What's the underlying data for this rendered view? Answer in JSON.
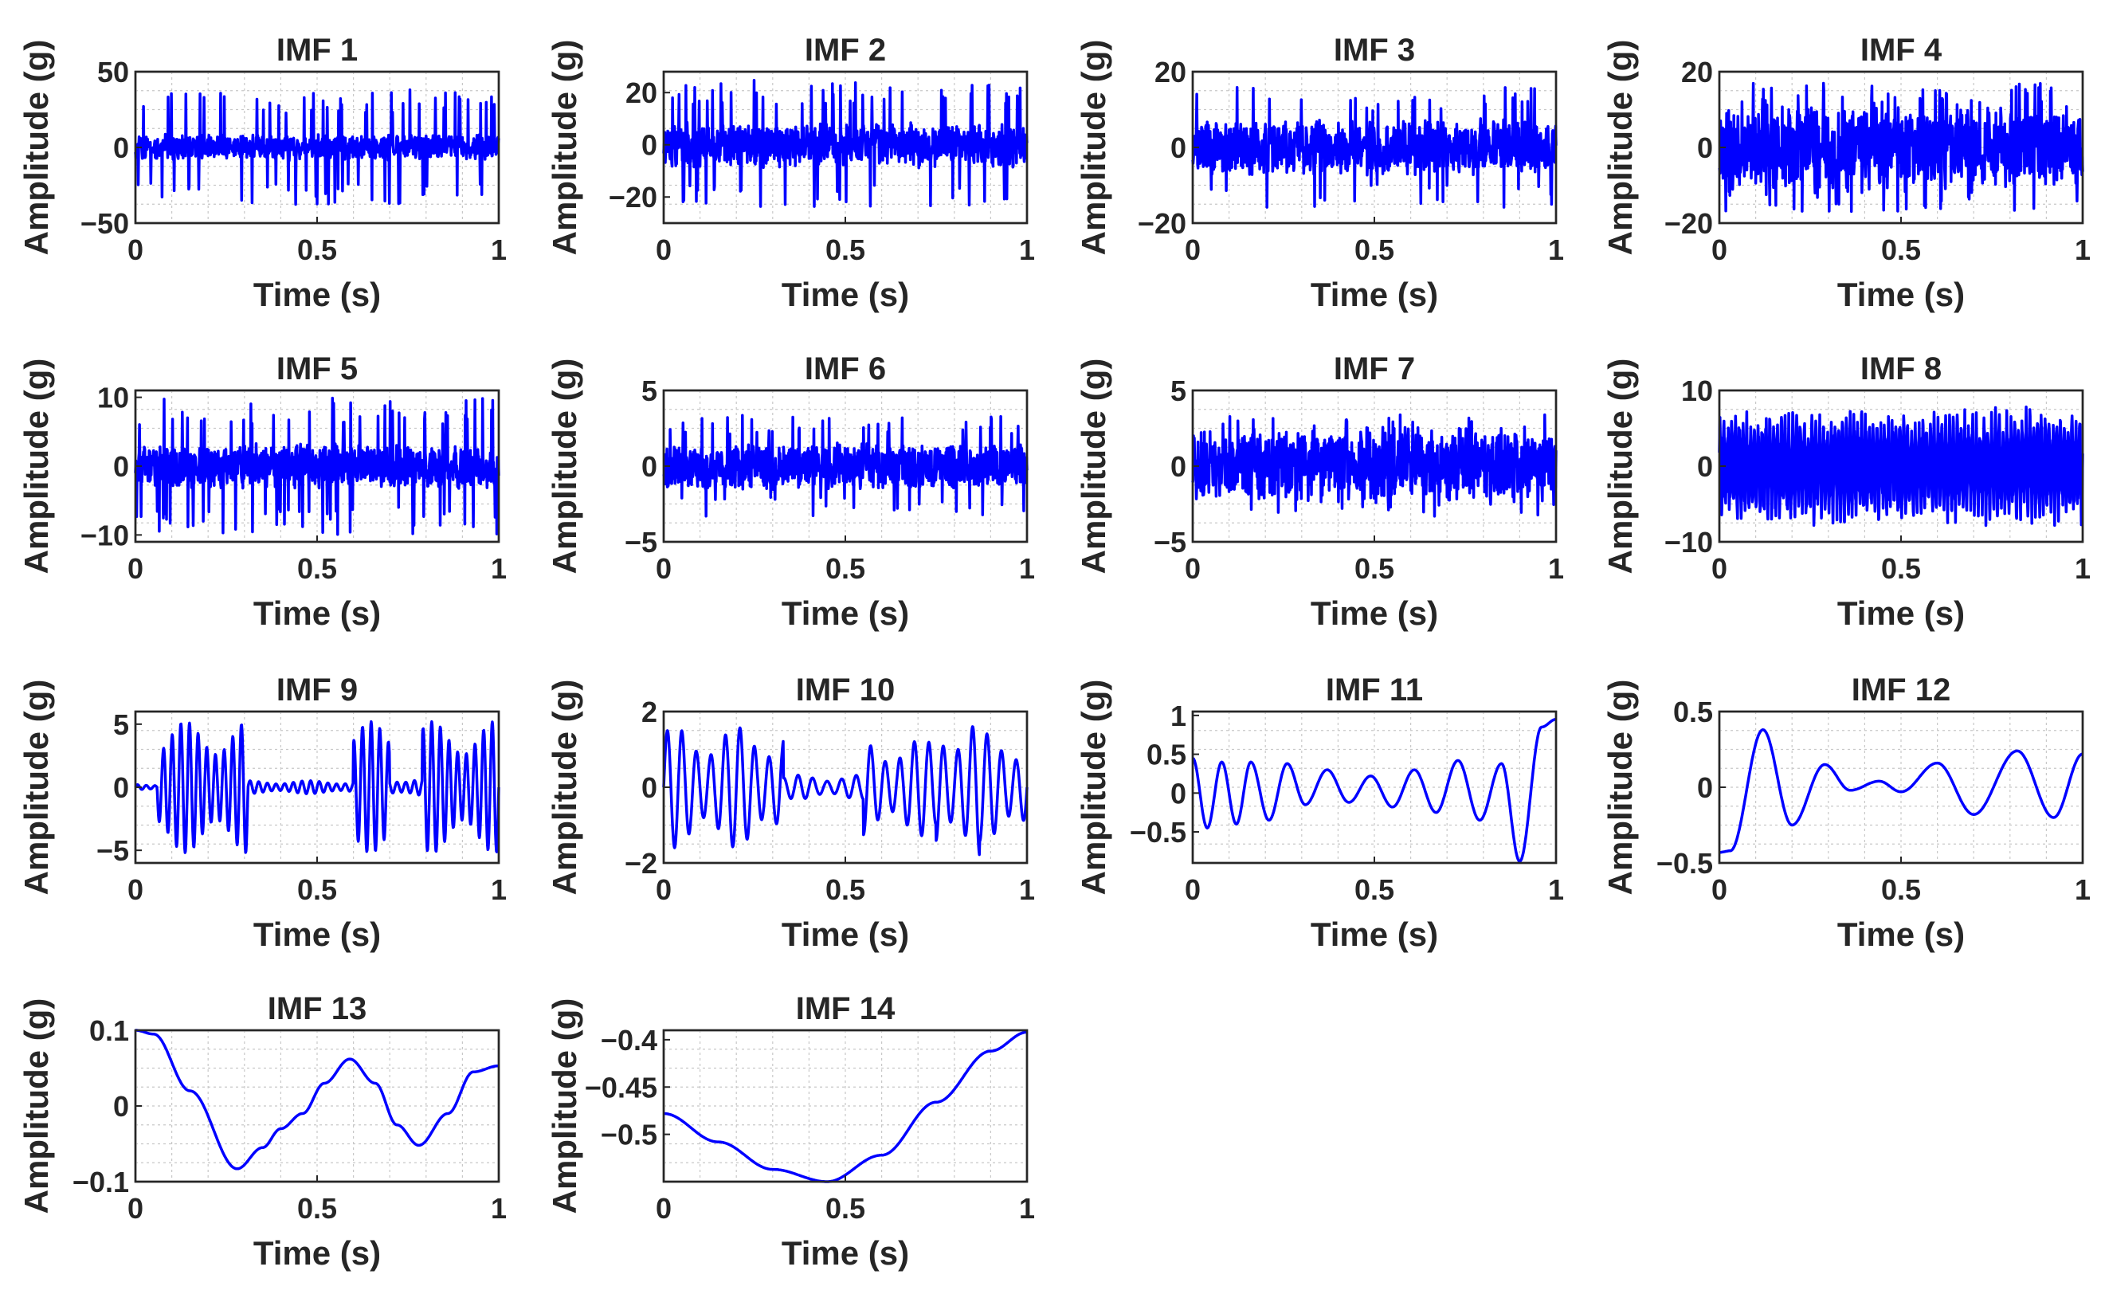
{
  "chart_data": [
    {
      "type": "line",
      "title": "IMF 1",
      "xlabel": "Time (s)",
      "ylabel": "Amplitude (g)",
      "xlim": [
        0,
        1
      ],
      "ylim": [
        -50,
        50
      ],
      "xticks": [
        "0",
        "0.5",
        "1"
      ],
      "yticks": [
        {
          "v": 50,
          "label": "50"
        },
        {
          "v": 0,
          "label": "0"
        },
        {
          "v": -50,
          "label": "−50"
        }
      ],
      "signal": {
        "kind": "noise",
        "amp": 9,
        "spike": 38,
        "spike_rate": 0.08,
        "seed": 11
      },
      "color": "#0000ff"
    },
    {
      "type": "line",
      "title": "IMF 2",
      "xlabel": "Time (s)",
      "ylabel": "Amplitude (g)",
      "xlim": [
        0,
        1
      ],
      "ylim": [
        -30,
        28
      ],
      "xticks": [
        "0",
        "0.5",
        "1"
      ],
      "yticks": [
        {
          "v": 20,
          "label": "20"
        },
        {
          "v": 0,
          "label": "0"
        },
        {
          "v": -20,
          "label": "−20"
        }
      ],
      "signal": {
        "kind": "noise",
        "amp": 9,
        "spike": 25,
        "spike_rate": 0.07,
        "seed": 23
      },
      "color": "#0000ff"
    },
    {
      "type": "line",
      "title": "IMF 3",
      "xlabel": "Time (s)",
      "ylabel": "Amplitude (g)",
      "xlim": [
        0,
        1
      ],
      "ylim": [
        -20,
        20
      ],
      "xticks": [
        "0",
        "0.5",
        "1"
      ],
      "yticks": [
        {
          "v": 20,
          "label": "20"
        },
        {
          "v": 0,
          "label": "0"
        },
        {
          "v": -20,
          "label": "−20"
        }
      ],
      "signal": {
        "kind": "noise",
        "amp": 8,
        "spike": 16,
        "spike_rate": 0.06,
        "seed": 37
      },
      "color": "#0000ff"
    },
    {
      "type": "line",
      "title": "IMF 4",
      "xlabel": "Time (s)",
      "ylabel": "Amplitude (g)",
      "xlim": [
        0,
        1
      ],
      "ylim": [
        -20,
        20
      ],
      "xticks": [
        "0",
        "0.5",
        "1"
      ],
      "yticks": [
        {
          "v": 20,
          "label": "20"
        },
        {
          "v": 0,
          "label": "0"
        },
        {
          "v": -20,
          "label": "−20"
        }
      ],
      "signal": {
        "kind": "noise",
        "amp": 11,
        "spike": 17,
        "spike_rate": 0.08,
        "seed": 41
      },
      "color": "#0000ff"
    },
    {
      "type": "line",
      "title": "IMF 5",
      "xlabel": "Time (s)",
      "ylabel": "Amplitude (g)",
      "xlim": [
        0,
        1
      ],
      "ylim": [
        -11,
        11
      ],
      "xticks": [
        "0",
        "0.5",
        "1"
      ],
      "yticks": [
        {
          "v": 10,
          "label": "10"
        },
        {
          "v": 0,
          "label": "0"
        },
        {
          "v": -10,
          "label": "−10"
        }
      ],
      "signal": {
        "kind": "noise",
        "amp": 3.5,
        "spike": 10,
        "spike_rate": 0.09,
        "seed": 53
      },
      "color": "#0000ff"
    },
    {
      "type": "line",
      "title": "IMF 6",
      "xlabel": "Time (s)",
      "ylabel": "Amplitude (g)",
      "xlim": [
        0,
        1
      ],
      "ylim": [
        -5,
        5
      ],
      "xticks": [
        "0",
        "0.5",
        "1"
      ],
      "yticks": [
        {
          "v": 5,
          "label": "5"
        },
        {
          "v": 0,
          "label": "0"
        },
        {
          "v": -5,
          "label": "−5"
        }
      ],
      "signal": {
        "kind": "noise",
        "amp": 1.6,
        "spike": 3.4,
        "spike_rate": 0.05,
        "seed": 67
      },
      "color": "#0000ff"
    },
    {
      "type": "line",
      "title": "IMF 7",
      "xlabel": "Time (s)",
      "ylabel": "Amplitude (g)",
      "xlim": [
        0,
        1
      ],
      "ylim": [
        -5,
        5
      ],
      "xticks": [
        "0",
        "0.5",
        "1"
      ],
      "yticks": [
        {
          "v": 5,
          "label": "5"
        },
        {
          "v": 0,
          "label": "0"
        },
        {
          "v": -5,
          "label": "−5"
        }
      ],
      "signal": {
        "kind": "noise",
        "amp": 2.6,
        "spike": 3.5,
        "spike_rate": 0.05,
        "seed": 71
      },
      "color": "#0000ff"
    },
    {
      "type": "line",
      "title": "IMF 8",
      "xlabel": "Time (s)",
      "ylabel": "Amplitude (g)",
      "xlim": [
        0,
        1
      ],
      "ylim": [
        -10,
        10
      ],
      "xticks": [
        "0",
        "0.5",
        "1"
      ],
      "yticks": [
        {
          "v": 10,
          "label": "10"
        },
        {
          "v": 0,
          "label": "0"
        },
        {
          "v": -10,
          "label": "−10"
        }
      ],
      "signal": {
        "kind": "burst",
        "cycles": 95,
        "amp": 7.5,
        "seed": 83
      },
      "color": "#0000ff"
    },
    {
      "type": "line",
      "title": "IMF 9",
      "xlabel": "Time (s)",
      "ylabel": "Amplitude (g)",
      "xlim": [
        0,
        1
      ],
      "ylim": [
        -6,
        6
      ],
      "xticks": [
        "0",
        "0.5",
        "1"
      ],
      "yticks": [
        {
          "v": 5,
          "label": "5"
        },
        {
          "v": 0,
          "label": "0"
        },
        {
          "v": -5,
          "label": "−5"
        }
      ],
      "signal": {
        "kind": "packets",
        "cycles": 42,
        "amp": 5.2,
        "windows": [
          [
            0.06,
            0.31,
            1
          ],
          [
            0.31,
            0.6,
            0.1
          ],
          [
            0.6,
            0.7,
            1
          ],
          [
            0.7,
            0.79,
            0.15
          ],
          [
            0.79,
            1,
            1
          ]
        ],
        "seed": 97
      },
      "color": "#0000ff"
    },
    {
      "type": "line",
      "title": "IMF 10",
      "xlabel": "Time (s)",
      "ylabel": "Amplitude (g)",
      "xlim": [
        0,
        1
      ],
      "ylim": [
        -2,
        2
      ],
      "xticks": [
        "0",
        "0.5",
        "1"
      ],
      "yticks": [
        {
          "v": 2,
          "label": "2"
        },
        {
          "v": 0,
          "label": "0"
        },
        {
          "v": -2,
          "label": "−2"
        }
      ],
      "signal": {
        "kind": "packets",
        "cycles": 25,
        "amp": 1.6,
        "windows": [
          [
            0,
            0.33,
            1
          ],
          [
            0.33,
            0.55,
            0.2
          ],
          [
            0.55,
            0.75,
            0.8
          ],
          [
            0.75,
            0.87,
            1.15
          ],
          [
            0.87,
            1,
            0.9
          ]
        ],
        "seed": 101
      },
      "color": "#0000ff"
    },
    {
      "type": "line",
      "title": "IMF 11",
      "xlabel": "Time (s)",
      "ylabel": "Amplitude (g)",
      "xlim": [
        0,
        1
      ],
      "ylim": [
        -0.9,
        1.05
      ],
      "xticks": [
        "0",
        "0.5",
        "1"
      ],
      "yticks": [
        {
          "v": 1,
          "label": "1"
        },
        {
          "v": 0.5,
          "label": "0.5"
        },
        {
          "v": 0,
          "label": "0"
        },
        {
          "v": -0.5,
          "label": "−0.5"
        }
      ],
      "points": [
        [
          0,
          0.45
        ],
        [
          0.04,
          -0.45
        ],
        [
          0.08,
          0.4
        ],
        [
          0.12,
          -0.4
        ],
        [
          0.16,
          0.4
        ],
        [
          0.21,
          -0.35
        ],
        [
          0.26,
          0.38
        ],
        [
          0.31,
          -0.15
        ],
        [
          0.37,
          0.3
        ],
        [
          0.43,
          -0.12
        ],
        [
          0.49,
          0.22
        ],
        [
          0.55,
          -0.18
        ],
        [
          0.61,
          0.3
        ],
        [
          0.67,
          -0.25
        ],
        [
          0.73,
          0.42
        ],
        [
          0.79,
          -0.35
        ],
        [
          0.85,
          0.38
        ],
        [
          0.9,
          -0.88
        ],
        [
          0.96,
          0.85
        ],
        [
          1,
          0.95
        ]
      ],
      "color": "#0000ff"
    },
    {
      "type": "line",
      "title": "IMF 12",
      "xlabel": "Time (s)",
      "ylabel": "Amplitude (g)",
      "xlim": [
        0,
        1
      ],
      "ylim": [
        -0.5,
        0.5
      ],
      "xticks": [
        "0",
        "0.5",
        "1"
      ],
      "yticks": [
        {
          "v": 0.5,
          "label": "0.5"
        },
        {
          "v": 0,
          "label": "0"
        },
        {
          "v": -0.5,
          "label": "−0.5"
        }
      ],
      "points": [
        [
          0,
          -0.43
        ],
        [
          0.03,
          -0.42
        ],
        [
          0.12,
          0.38
        ],
        [
          0.2,
          -0.25
        ],
        [
          0.29,
          0.15
        ],
        [
          0.36,
          -0.02
        ],
        [
          0.44,
          0.04
        ],
        [
          0.5,
          -0.03
        ],
        [
          0.6,
          0.16
        ],
        [
          0.7,
          -0.18
        ],
        [
          0.82,
          0.24
        ],
        [
          0.92,
          -0.2
        ],
        [
          1,
          0.22
        ]
      ],
      "color": "#0000ff"
    },
    {
      "type": "line",
      "title": "IMF 13",
      "xlabel": "Time (s)",
      "ylabel": "Amplitude (g)",
      "xlim": [
        0,
        1
      ],
      "ylim": [
        -0.1,
        0.1
      ],
      "xticks": [
        "0",
        "0.5",
        "1"
      ],
      "yticks": [
        {
          "v": 0.1,
          "label": "0.1"
        },
        {
          "v": 0,
          "label": "0"
        },
        {
          "v": -0.1,
          "label": "−0.1"
        }
      ],
      "points": [
        [
          0,
          0.1
        ],
        [
          0.05,
          0.095
        ],
        [
          0.15,
          0.02
        ],
        [
          0.28,
          -0.083
        ],
        [
          0.35,
          -0.055
        ],
        [
          0.4,
          -0.03
        ],
        [
          0.46,
          -0.01
        ],
        [
          0.52,
          0.03
        ],
        [
          0.59,
          0.062
        ],
        [
          0.66,
          0.03
        ],
        [
          0.72,
          -0.025
        ],
        [
          0.78,
          -0.052
        ],
        [
          0.86,
          -0.01
        ],
        [
          0.93,
          0.045
        ],
        [
          1,
          0.053
        ]
      ],
      "color": "#0000ff"
    },
    {
      "type": "line",
      "title": "IMF 14",
      "xlabel": "Time (s)",
      "ylabel": "Amplitude (g)",
      "xlim": [
        0,
        1
      ],
      "ylim": [
        -0.55,
        -0.39
      ],
      "xticks": [
        "0",
        "0.5",
        "1"
      ],
      "yticks": [
        {
          "v": -0.4,
          "label": "−0.4"
        },
        {
          "v": -0.45,
          "label": "−0.45"
        },
        {
          "v": -0.5,
          "label": "−0.5"
        }
      ],
      "points": [
        [
          0,
          -0.478
        ],
        [
          0.15,
          -0.508
        ],
        [
          0.3,
          -0.537
        ],
        [
          0.45,
          -0.55
        ],
        [
          0.6,
          -0.522
        ],
        [
          0.75,
          -0.466
        ],
        [
          0.9,
          -0.412
        ],
        [
          1,
          -0.392
        ]
      ],
      "color": "#0000ff"
    }
  ]
}
